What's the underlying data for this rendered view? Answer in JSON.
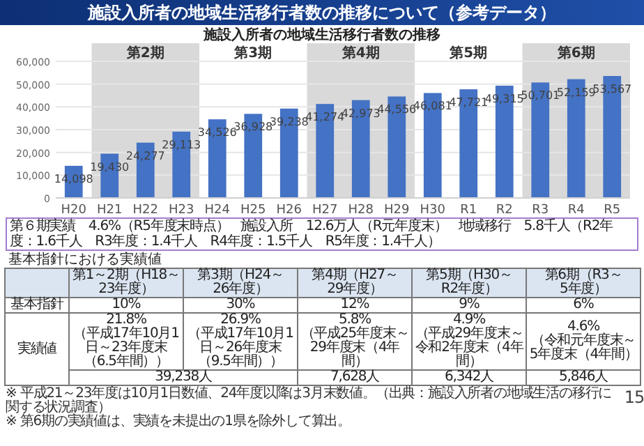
{
  "chart_data": [
    {
      "type": "bar",
      "title": "施設入所者の地域生活移行者数の推移について（参考データ）",
      "subtitle": "施設入所者の地域生活移行者数の推移",
      "categories": [
        "H20",
        "H21",
        "H22",
        "H23",
        "H24",
        "H25",
        "H26",
        "H27",
        "H28",
        "H29",
        "H30",
        "R1",
        "R2",
        "R3",
        "R4",
        "R5"
      ],
      "values": [
        14098,
        19430,
        24277,
        29113,
        34526,
        36928,
        39238,
        41274,
        42973,
        44556,
        46081,
        47721,
        49315,
        50701,
        52159,
        53567
      ],
      "value_labels": [
        "14,098",
        "19,430",
        "24,277",
        "29,113",
        "34,526",
        "36,928",
        "39,238",
        "41,274",
        "42,973",
        "44,556",
        "46,081",
        "47,721",
        "49,315",
        "50,701",
        "52,159",
        "53,567"
      ],
      "color": "#4472c4",
      "grid": "y",
      "ylim": [
        0,
        60000
      ],
      "yticks": [
        0,
        {
          "value": 10000,
          "label": "10,000"
        },
        {
          "value": 20000,
          "label": "20,000"
        },
        {
          "value": 30000,
          "label": "30,000"
        },
        {
          "value": 40000,
          "label": "40,000"
        },
        {
          "value": 50000,
          "label": "50,000"
        },
        {
          "value": 60000,
          "label": "60,000"
        }
      ],
      "bands": [
        {
          "axis": "x",
          "from": "H21",
          "to": "H23",
          "label": "第2期",
          "color": "#d9d9d9"
        },
        {
          "axis": "x",
          "from": "H27",
          "to": "H29",
          "label": "第4期",
          "color": "#d9d9d9"
        },
        {
          "axis": "x",
          "from": "R3",
          "to": "R5",
          "label": "第6期",
          "color": "#d9d9d9"
        }
      ],
      "annotations": [
        "第3期",
        "第5期",
        "第６期実績　4.6%（R5年度末時点）",
        "施設入所　12.6万人（R元年度末）",
        "地域移行　5.8千人（R2年度：1.6千人　R3年度：1.4千人　R4年度：1.5千人　R5年度：1.4千人）"
      ]
    },
    {
      "type": "other",
      "title": "基本指針における実績値",
      "annotations": [
        "第1～2期（H18～23年度）",
        "第3期（H24～26年度）",
        "第4期（H27～29年度）",
        "第5期（H30～R2年度）",
        "第6期（R3～5年度）",
        "基本指針",
        "10%",
        "30%",
        "12%",
        "9%",
        "6%",
        "実績値",
        "21.8%\n（平成17年10月1日～23年度末（6.5年間））",
        "26.9%\n（平成17年10月1日～26年度末（9.5年間））",
        "5.8%\n（平成25年度末～29年度末（4年間）",
        "4.9%\n（平成29年度末～令和2年度末（4年間）",
        "4.6%\n（令和元年度末～5年度末（4年間）",
        "39,238人",
        "7,628人",
        "6,342人",
        "5,846人",
        "※ 平成21～23年度は10月1日数値、24年度以降は3月末数値。（出典：施設入所者の地域生活の移行に関する状況調査）",
        "※ 第6期の実績値は、実績を未提出の1県を除外して算出。",
        "15"
      ]
    }
  ]
}
